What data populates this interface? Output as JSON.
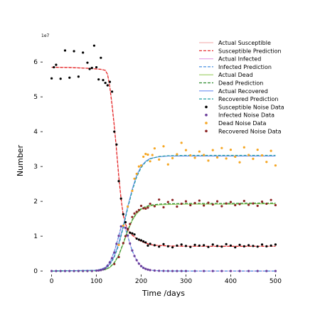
{
  "chart_data": {
    "type": "line",
    "xlabel": "Time /days",
    "ylabel": "Number",
    "y_multiplier_label": "1e7",
    "xlim": [
      -20,
      520
    ],
    "ylim": [
      -1000000,
      68000000
    ],
    "x_ticks": [
      0,
      100,
      200,
      300,
      400,
      500
    ],
    "x_tick_labels": [
      "0",
      "100",
      "200",
      "300",
      "400",
      "500"
    ],
    "y_ticks": [
      0,
      10000000,
      20000000,
      30000000,
      40000000,
      50000000,
      60000000
    ],
    "y_tick_labels": [
      "0",
      "1",
      "2",
      "3",
      "4",
      "5",
      "6"
    ],
    "grid": false,
    "legend_position": "top-right",
    "legend": [
      {
        "label": "Actual Susceptible",
        "color": "#f4b6b6",
        "style": "solid"
      },
      {
        "label": "Susceptible Prediction",
        "color": "#e41a1c",
        "style": "dashed"
      },
      {
        "label": "Actual Infected",
        "color": "#e6a8e6",
        "style": "solid"
      },
      {
        "label": "Infected Prediction",
        "color": "#4a90e2",
        "style": "dashed"
      },
      {
        "label": "Actual Dead",
        "color": "#9acd62",
        "style": "solid"
      },
      {
        "label": "Dead Prediction",
        "color": "#2e8b2e",
        "style": "dashed"
      },
      {
        "label": "Actual Recovered",
        "color": "#6f8ff0",
        "style": "solid"
      },
      {
        "label": "Recovered Prediction",
        "color": "#1f9ea0",
        "style": "dashed"
      },
      {
        "label": "Susceptible Noise Data",
        "color": "#000000",
        "style": "marker"
      },
      {
        "label": "Infected Noise Data",
        "color": "#6a3d9a",
        "style": "marker"
      },
      {
        "label": "Dead Noise Data",
        "color": "#f5a623",
        "style": "marker"
      },
      {
        "label": "Recovered Noise Data",
        "color": "#8b2323",
        "style": "marker"
      }
    ],
    "curves": [
      {
        "name": "Actual Susceptible",
        "color": "#f4b6b6",
        "dash": "",
        "width": 1.2,
        "x": [
          0,
          40,
          80,
          100,
          110,
          120,
          125,
          130,
          135,
          140,
          145,
          150,
          155,
          160,
          165,
          170,
          175,
          180,
          185,
          190,
          195,
          200,
          210,
          220,
          230,
          260,
          300,
          350,
          400,
          450,
          500
        ],
        "y": [
          58500000,
          58500000,
          58200000,
          58000000,
          57900000,
          57600000,
          56500000,
          53000000,
          48000000,
          42000000,
          35000000,
          27500000,
          21000000,
          16000000,
          13500000,
          12000000,
          11000000,
          10300000,
          9800000,
          9300000,
          8900000,
          8500000,
          8000000,
          7600000,
          7400000,
          7200000,
          7100000,
          7100000,
          7100000,
          7100000,
          7100000
        ]
      },
      {
        "name": "Susceptible Prediction",
        "color": "#e41a1c",
        "dash": "4,2",
        "width": 1.2,
        "x": [
          0,
          40,
          80,
          100,
          110,
          120,
          125,
          130,
          135,
          140,
          145,
          150,
          155,
          160,
          165,
          170,
          175,
          180,
          185,
          190,
          195,
          200,
          210,
          220,
          230,
          260,
          300,
          350,
          400,
          450,
          500
        ],
        "y": [
          58500000,
          58400000,
          58200000,
          58000000,
          57900000,
          57600000,
          56400000,
          52800000,
          47500000,
          41500000,
          34500000,
          27000000,
          20800000,
          16000000,
          13500000,
          12000000,
          11000000,
          10300000,
          9800000,
          9300000,
          8900000,
          8500000,
          8000000,
          7600000,
          7400000,
          7200000,
          7100000,
          7100000,
          7100000,
          7100000,
          7100000
        ]
      },
      {
        "name": "Actual Infected",
        "color": "#e6a8e6",
        "dash": "",
        "width": 1.2,
        "x": [
          0,
          100,
          120,
          130,
          140,
          150,
          155,
          160,
          165,
          170,
          175,
          180,
          190,
          200,
          210,
          220,
          240,
          260,
          300,
          500
        ],
        "y": [
          0,
          100000,
          1000000,
          2500000,
          5500000,
          10000000,
          12500000,
          13000000,
          12000000,
          10000000,
          7800000,
          5800000,
          3000000,
          1400000,
          600000,
          250000,
          50000,
          10000,
          0,
          0
        ]
      },
      {
        "name": "Infected Prediction",
        "color": "#4a90e2",
        "dash": "4,2",
        "width": 1.2,
        "x": [
          0,
          100,
          120,
          130,
          140,
          150,
          155,
          160,
          165,
          170,
          175,
          180,
          190,
          200,
          210,
          220,
          240,
          260,
          300,
          500
        ],
        "y": [
          0,
          100000,
          1000000,
          2600000,
          5600000,
          10100000,
          12600000,
          13100000,
          12000000,
          10000000,
          7800000,
          5800000,
          3000000,
          1400000,
          600000,
          250000,
          50000,
          10000,
          0,
          0
        ]
      },
      {
        "name": "Actual Dead",
        "color": "#9acd62",
        "dash": "",
        "width": 1.2,
        "x": [
          0,
          100,
          120,
          130,
          140,
          150,
          160,
          170,
          180,
          190,
          200,
          210,
          220,
          240,
          260,
          300,
          350,
          400,
          450,
          500
        ],
        "y": [
          0,
          100000,
          400000,
          1000000,
          2300000,
          4500000,
          7800000,
          11500000,
          14500000,
          16500000,
          17700000,
          18300000,
          18700000,
          19000000,
          19100000,
          19200000,
          19200000,
          19200000,
          19300000,
          19300000
        ]
      },
      {
        "name": "Dead Prediction",
        "color": "#2e8b2e",
        "dash": "4,2",
        "width": 1.2,
        "x": [
          0,
          100,
          120,
          130,
          140,
          150,
          160,
          170,
          180,
          190,
          200,
          210,
          220,
          240,
          260,
          300,
          350,
          400,
          450,
          500
        ],
        "y": [
          0,
          100000,
          400000,
          1100000,
          2400000,
          4600000,
          8000000,
          11700000,
          14700000,
          16700000,
          17900000,
          18500000,
          18900000,
          19200000,
          19300000,
          19400000,
          19400000,
          19400000,
          19500000,
          19500000
        ]
      },
      {
        "name": "Actual Recovered",
        "color": "#6f8ff0",
        "dash": "",
        "width": 1.2,
        "x": [
          0,
          100,
          120,
          130,
          140,
          150,
          160,
          170,
          180,
          190,
          200,
          210,
          220,
          240,
          260,
          300,
          350,
          400,
          450,
          500
        ],
        "y": [
          0,
          200000,
          800000,
          2000000,
          4300000,
          8000000,
          13000000,
          18500000,
          23500000,
          27500000,
          30000000,
          31500000,
          32300000,
          32800000,
          33000000,
          33000000,
          33000000,
          33000000,
          33000000,
          33000000
        ]
      },
      {
        "name": "Recovered Prediction",
        "color": "#1f9ea0",
        "dash": "4,2",
        "width": 1.2,
        "x": [
          0,
          100,
          120,
          130,
          140,
          150,
          160,
          170,
          180,
          190,
          200,
          210,
          220,
          240,
          260,
          300,
          350,
          400,
          450,
          500
        ],
        "y": [
          0,
          200000,
          700000,
          1800000,
          4000000,
          7500000,
          12500000,
          18000000,
          23000000,
          27000000,
          29700000,
          31300000,
          32200000,
          32900000,
          33100000,
          33200000,
          33200000,
          33200000,
          33200000,
          33200000
        ]
      }
    ],
    "scatter": [
      {
        "name": "Susceptible Noise Data",
        "color": "#000000",
        "x": [
          0,
          5,
          10,
          20,
          30,
          40,
          50,
          60,
          70,
          80,
          85,
          90,
          95,
          100,
          105,
          110,
          115,
          120,
          125,
          130,
          135,
          140,
          145,
          150,
          155,
          160,
          165,
          170,
          175,
          180,
          185,
          190,
          195,
          200,
          205,
          210,
          215,
          220,
          230,
          240,
          250,
          260,
          270,
          280,
          290,
          300,
          310,
          320,
          330,
          340,
          350,
          360,
          370,
          380,
          390,
          400,
          410,
          420,
          430,
          440,
          450,
          460,
          470,
          480,
          490,
          500
        ],
        "y": [
          55300000,
          58500000,
          59200000,
          55200000,
          63300000,
          55500000,
          63100000,
          55800000,
          62700000,
          59800000,
          58000000,
          58300000,
          64700000,
          58500000,
          55000000,
          61200000,
          54800000,
          54000000,
          53300000,
          54300000,
          51500000,
          40000000,
          36300000,
          25800000,
          20800000,
          16300000,
          14000000,
          12000000,
          11000000,
          10800000,
          10500000,
          9300000,
          9000000,
          8800000,
          8500000,
          8200000,
          7300000,
          7800000,
          7400000,
          7000000,
          7700000,
          7100000,
          6800000,
          7300000,
          7600000,
          7200000,
          6900000,
          7500000,
          7300000,
          7400000,
          6900000,
          7600000,
          7200000,
          7000000,
          7700000,
          7300000,
          6800000,
          7500000,
          7100000,
          7400000,
          7200000,
          7000000,
          7600000,
          7100000,
          7300000,
          7600000
        ]
      },
      {
        "name": "Infected Noise Data",
        "color": "#6a3d9a",
        "x": [
          0,
          10,
          20,
          30,
          40,
          50,
          60,
          70,
          80,
          90,
          100,
          105,
          110,
          115,
          120,
          125,
          130,
          135,
          140,
          145,
          150,
          155,
          160,
          165,
          170,
          175,
          180,
          185,
          190,
          195,
          200,
          205,
          210,
          215,
          220,
          230,
          240,
          250,
          260,
          270,
          280,
          290,
          300,
          320,
          340,
          360,
          380,
          400,
          420,
          440,
          460,
          480,
          500
        ],
        "y": [
          0,
          0,
          0,
          0,
          0,
          0,
          0,
          0,
          0,
          0,
          100000,
          150000,
          250000,
          450000,
          800000,
          1500000,
          2500000,
          3700000,
          5300000,
          7800000,
          10100000,
          12800000,
          13000000,
          12400000,
          10200000,
          7900000,
          5900000,
          4300000,
          3100000,
          2100000,
          1400000,
          900000,
          600000,
          400000,
          250000,
          120000,
          60000,
          30000,
          10000,
          0,
          0,
          0,
          0,
          0,
          0,
          0,
          0,
          0,
          0,
          0,
          0,
          0,
          0
        ]
      },
      {
        "name": "Dead Noise Data",
        "color": "#f5a623",
        "x": [
          150,
          160,
          170,
          180,
          185,
          190,
          195,
          200,
          205,
          210,
          215,
          220,
          225,
          230,
          240,
          250,
          260,
          270,
          280,
          290,
          300,
          310,
          320,
          330,
          340,
          350,
          360,
          370,
          380,
          390,
          400,
          410,
          420,
          430,
          440,
          450,
          460,
          470,
          480,
          490,
          500
        ],
        "y": [
          7500000,
          13000000,
          18500000,
          23000000,
          26500000,
          27900000,
          30000000,
          30300000,
          32800000,
          33600000,
          33400000,
          31500000,
          33300000,
          35200000,
          32000000,
          35800000,
          30600000,
          32400000,
          33500000,
          36800000,
          34700000,
          33200000,
          32500000,
          34300000,
          33300000,
          31700000,
          34700000,
          32600000,
          35300000,
          32300000,
          34800000,
          32800000,
          31200000,
          35500000,
          33300000,
          32200000,
          34800000,
          33200000,
          31300000,
          34500000,
          30300000
        ]
      },
      {
        "name": "Recovered Noise Data",
        "color": "#8b2323",
        "x": [
          140,
          150,
          160,
          165,
          170,
          175,
          180,
          185,
          190,
          195,
          200,
          205,
          210,
          215,
          220,
          230,
          240,
          250,
          260,
          270,
          280,
          290,
          300,
          310,
          320,
          330,
          340,
          350,
          360,
          370,
          380,
          390,
          400,
          410,
          420,
          430,
          440,
          450,
          460,
          470,
          480,
          490,
          500
        ],
        "y": [
          2000000,
          4000000,
          8000000,
          10000000,
          11900000,
          13500000,
          15500000,
          16500000,
          17000000,
          17500000,
          18700000,
          18000000,
          17900000,
          18200000,
          19300000,
          18600000,
          20500000,
          18300000,
          19800000,
          20400000,
          18500000,
          19300000,
          20000000,
          18900000,
          19500000,
          20200000,
          18800000,
          19600000,
          19100000,
          20000000,
          18600000,
          19400000,
          19800000,
          18900000,
          19200000,
          20100000,
          19000000,
          19400000,
          18700000,
          19900000,
          19300000,
          20400000,
          18900000
        ]
      }
    ]
  }
}
